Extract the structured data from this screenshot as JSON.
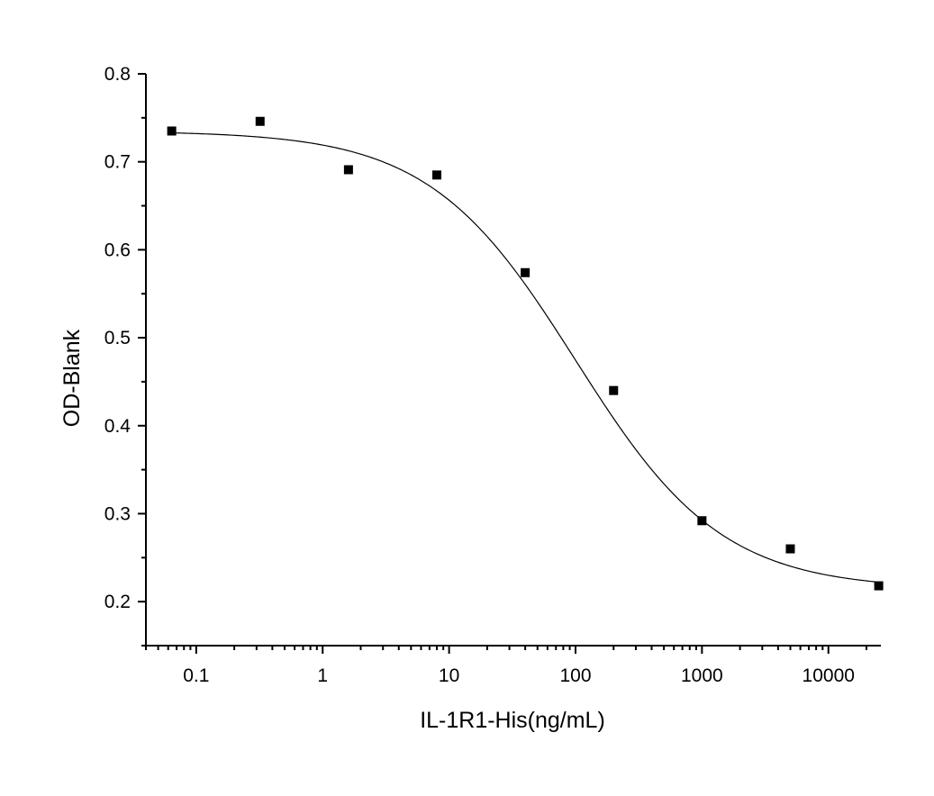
{
  "chart_data": {
    "type": "scatter",
    "title": "",
    "xlabel": "IL-1R1-His(ng/mL)",
    "ylabel": "OD-Blank",
    "xscale": "log",
    "xlim": [
      0.04,
      26000
    ],
    "ylim": [
      0.15,
      0.8
    ],
    "x_ticks": [
      0.1,
      1,
      10,
      100,
      1000,
      10000
    ],
    "x_tick_labels": [
      "0.1",
      "1",
      "10",
      "100",
      "1000",
      "10000"
    ],
    "y_ticks": [
      0.2,
      0.3,
      0.4,
      0.5,
      0.6,
      0.7,
      0.8
    ],
    "y_tick_labels": [
      "0.2",
      "0.3",
      "0.4",
      "0.5",
      "0.6",
      "0.7",
      "0.8"
    ],
    "grid": false,
    "legend": "none",
    "series": [
      {
        "kind": "points",
        "marker": "square",
        "color": "#000000",
        "x": [
          0.064,
          0.32,
          1.6,
          8,
          40,
          200,
          1000,
          5000,
          25000
        ],
        "y": [
          0.735,
          0.746,
          0.691,
          0.685,
          0.574,
          0.44,
          0.292,
          0.26,
          0.218
        ]
      },
      {
        "kind": "fit-curve",
        "model": "4PL",
        "color": "#000000",
        "params": {
          "top": 0.735,
          "bottom": 0.214,
          "ec50": 100,
          "hill": 0.75
        },
        "x_range": [
          0.064,
          25000
        ]
      }
    ]
  }
}
